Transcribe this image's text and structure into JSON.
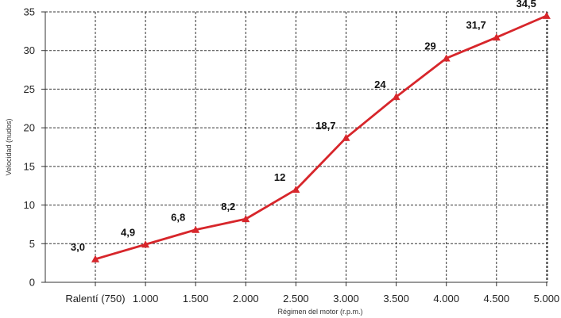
{
  "chart_data": {
    "type": "line",
    "title": "",
    "xlabel": "Régimen del motor (r.p.m.)",
    "ylabel": "Velocidad (nudos)",
    "categories": [
      "Ralentí (750)",
      "1.000",
      "1.500",
      "2.000",
      "2.500",
      "3.000",
      "3.500",
      "4.000",
      "4.500",
      "5.000"
    ],
    "series": [
      {
        "values": [
          3.0,
          4.9,
          6.8,
          8.2,
          12,
          18.7,
          24,
          29,
          31.7,
          34.5
        ],
        "labels": [
          "3,0",
          "4,9",
          "6,8",
          "8,2",
          "12",
          "18,7",
          "24",
          "29",
          "31,7",
          "34,5"
        ],
        "color": "#d7262b",
        "marker": "triangle"
      }
    ],
    "ylim": [
      0,
      35
    ],
    "yticks": [
      0,
      5,
      10,
      15,
      20,
      25,
      30,
      35
    ],
    "grid": true,
    "grid_style": "dashed",
    "legend": "none"
  }
}
